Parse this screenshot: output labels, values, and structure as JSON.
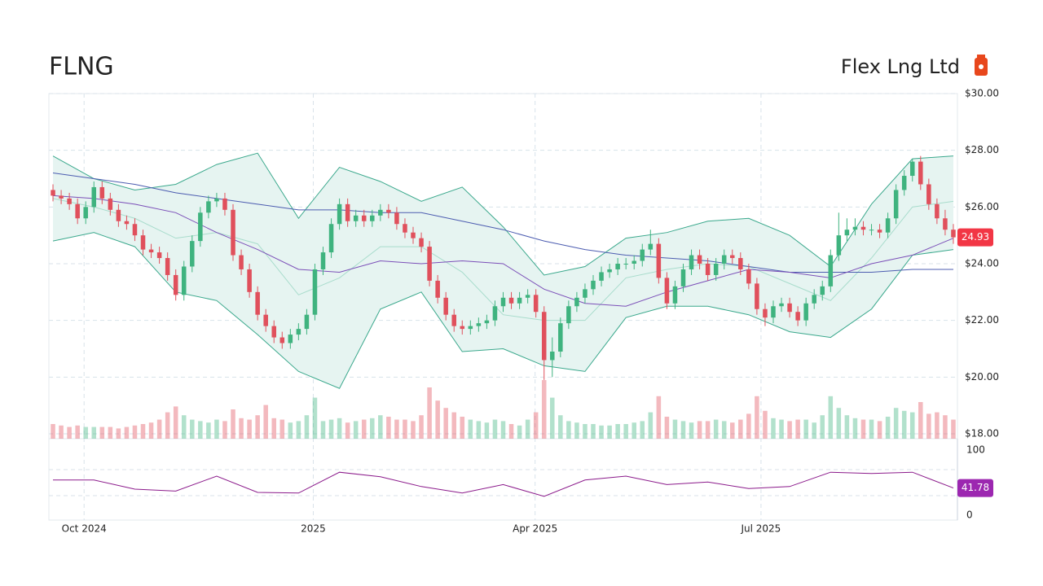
{
  "chart_data": {
    "type": "candlestick",
    "title": "FLNG",
    "subtitle": "Flex Lng Ltd",
    "up_color": "#3fb37f",
    "down_color": "#e0505c",
    "xlim": [
      0,
      111
    ],
    "xticks": [
      {
        "value": 3.8,
        "label": "Oct 2024"
      },
      {
        "value": 31.8,
        "label": "2025"
      },
      {
        "value": 58.9,
        "label": "Apr 2025"
      },
      {
        "value": 86.5,
        "label": "Jul 2025"
      }
    ],
    "ylim": [
      18,
      30
    ],
    "yticks": [
      {
        "value": 18,
        "label": "$18.00"
      },
      {
        "value": 20,
        "label": "$20.00"
      },
      {
        "value": 22,
        "label": "$22.00"
      },
      {
        "value": 24,
        "label": "$24.00"
      },
      {
        "value": 26,
        "label": "$26.00"
      },
      {
        "value": 28,
        "label": "$28.00"
      },
      {
        "value": 30,
        "label": "$30.00"
      }
    ],
    "grid": true,
    "open": [
      26.6,
      26.4,
      26.3,
      26.1,
      25.6,
      26.0,
      26.7,
      26.3,
      25.9,
      25.5,
      25.4,
      25.0,
      24.5,
      24.4,
      24.2,
      23.6,
      22.9,
      23.9,
      24.8,
      25.8,
      26.2,
      26.3,
      25.9,
      24.3,
      23.8,
      23.0,
      22.2,
      21.8,
      21.4,
      21.2,
      21.5,
      21.7,
      22.2,
      23.8,
      24.4,
      25.4,
      26.1,
      25.5,
      25.7,
      25.5,
      25.7,
      25.9,
      25.8,
      25.4,
      25.1,
      24.9,
      24.6,
      23.4,
      22.8,
      22.2,
      21.8,
      21.7,
      21.8,
      21.9,
      22.0,
      22.5,
      22.8,
      22.6,
      22.8,
      22.9,
      22.3,
      20.6,
      20.9,
      21.9,
      22.5,
      22.8,
      23.1,
      23.4,
      23.7,
      23.8,
      24.0,
      24.0,
      24.1,
      24.5,
      24.7,
      23.5,
      22.6,
      23.2,
      23.8,
      24.3,
      24.0,
      23.6,
      24.0,
      24.3,
      24.2,
      23.8,
      23.3,
      22.4,
      22.1,
      22.5,
      22.6,
      22.3,
      22.0,
      22.6,
      22.9,
      23.2,
      24.3,
      25.0,
      25.2,
      25.3,
      25.2,
      25.2,
      25.1,
      25.6,
      26.6,
      27.1,
      27.6,
      26.8,
      26.1,
      25.6,
      25.2
    ],
    "high": [
      26.8,
      26.6,
      26.5,
      26.3,
      26.2,
      26.9,
      26.9,
      26.5,
      26.1,
      25.7,
      25.6,
      25.2,
      24.7,
      24.6,
      24.4,
      23.8,
      24.1,
      25.0,
      26.0,
      26.4,
      26.5,
      26.5,
      26.1,
      24.5,
      24.0,
      23.2,
      22.4,
      22.0,
      21.6,
      21.7,
      21.9,
      22.4,
      24.0,
      24.6,
      25.6,
      26.3,
      26.3,
      25.9,
      25.9,
      25.9,
      26.1,
      26.1,
      26.0,
      25.6,
      25.3,
      25.1,
      24.8,
      23.6,
      23.0,
      22.4,
      22.0,
      22.0,
      22.1,
      22.2,
      22.7,
      23.0,
      23.0,
      23.0,
      23.1,
      23.1,
      22.5,
      21.4,
      22.1,
      22.7,
      23.0,
      23.3,
      23.6,
      23.9,
      24.0,
      24.2,
      24.2,
      24.3,
      24.7,
      25.2,
      24.9,
      23.7,
      23.4,
      24.0,
      24.5,
      24.5,
      24.2,
      24.2,
      24.5,
      24.5,
      24.4,
      24.0,
      23.5,
      22.6,
      22.7,
      22.8,
      22.8,
      22.5,
      22.8,
      23.1,
      23.4,
      24.5,
      25.8,
      25.6,
      25.6,
      25.5,
      25.4,
      25.4,
      25.8,
      26.8,
      27.3,
      27.7,
      27.8,
      27.0,
      26.3,
      25.9,
      25.4
    ],
    "low": [
      26.2,
      26.1,
      25.9,
      25.4,
      25.4,
      25.8,
      26.1,
      25.7,
      25.3,
      25.2,
      24.8,
      24.3,
      24.2,
      24.0,
      23.4,
      22.7,
      22.7,
      23.7,
      24.6,
      25.6,
      26.0,
      25.7,
      24.1,
      23.6,
      22.8,
      22.0,
      21.6,
      21.2,
      21.0,
      21.0,
      21.3,
      21.5,
      22.0,
      23.6,
      24.2,
      25.2,
      25.3,
      25.3,
      25.3,
      25.3,
      25.5,
      25.6,
      25.2,
      24.9,
      24.7,
      24.4,
      23.2,
      22.6,
      22.0,
      21.6,
      21.5,
      21.5,
      21.6,
      21.7,
      21.8,
      22.3,
      22.4,
      22.4,
      22.6,
      22.1,
      19.9,
      20.0,
      20.7,
      21.7,
      22.3,
      22.6,
      22.9,
      23.2,
      23.5,
      23.6,
      23.8,
      23.8,
      23.9,
      24.3,
      23.3,
      22.4,
      22.4,
      23.0,
      23.6,
      23.8,
      23.4,
      23.4,
      23.8,
      24.0,
      23.6,
      23.1,
      22.2,
      21.8,
      21.9,
      22.3,
      22.1,
      21.8,
      21.8,
      22.4,
      22.7,
      23.0,
      24.1,
      24.8,
      25.0,
      25.0,
      25.0,
      24.9,
      24.9,
      25.4,
      26.4,
      26.9,
      26.6,
      25.9,
      25.4,
      25.0,
      24.7
    ],
    "close": [
      26.4,
      26.3,
      26.1,
      25.6,
      26.0,
      26.7,
      26.3,
      25.9,
      25.5,
      25.4,
      25.0,
      24.5,
      24.4,
      24.2,
      23.6,
      22.9,
      23.9,
      24.8,
      25.8,
      26.2,
      26.3,
      25.9,
      24.3,
      23.8,
      23.0,
      22.2,
      21.8,
      21.4,
      21.2,
      21.5,
      21.7,
      22.2,
      23.8,
      24.4,
      25.4,
      26.1,
      25.5,
      25.7,
      25.5,
      25.7,
      25.9,
      25.8,
      25.4,
      25.1,
      24.9,
      24.6,
      23.4,
      22.8,
      22.2,
      21.8,
      21.7,
      21.8,
      21.9,
      22.0,
      22.5,
      22.8,
      22.6,
      22.8,
      22.9,
      22.3,
      20.6,
      20.9,
      21.9,
      22.5,
      22.8,
      23.1,
      23.4,
      23.7,
      23.8,
      24.0,
      24.0,
      24.1,
      24.5,
      24.7,
      23.5,
      22.6,
      23.2,
      23.8,
      24.3,
      24.0,
      23.6,
      24.0,
      24.3,
      24.2,
      23.8,
      23.3,
      22.4,
      22.1,
      22.5,
      22.6,
      22.3,
      22.0,
      22.6,
      22.9,
      23.2,
      24.3,
      25.0,
      25.2,
      25.3,
      25.2,
      25.2,
      25.1,
      25.6,
      26.6,
      27.1,
      27.6,
      26.8,
      26.1,
      25.6,
      25.2,
      24.93
    ],
    "volume": [
      1.0,
      0.9,
      0.8,
      0.9,
      0.8,
      0.8,
      0.8,
      0.8,
      0.7,
      0.8,
      0.9,
      1.0,
      1.1,
      1.3,
      1.8,
      2.2,
      1.6,
      1.3,
      1.2,
      1.1,
      1.3,
      1.2,
      2.0,
      1.4,
      1.3,
      1.6,
      2.3,
      1.4,
      1.3,
      1.1,
      1.2,
      1.6,
      2.8,
      1.2,
      1.3,
      1.4,
      1.1,
      1.2,
      1.3,
      1.4,
      1.6,
      1.5,
      1.3,
      1.3,
      1.2,
      1.6,
      3.5,
      2.6,
      2.1,
      1.8,
      1.5,
      1.3,
      1.2,
      1.1,
      1.3,
      1.2,
      1.0,
      0.9,
      1.3,
      1.8,
      4.0,
      2.8,
      1.6,
      1.2,
      1.1,
      1.0,
      1.0,
      0.9,
      0.9,
      1.0,
      1.0,
      1.1,
      1.2,
      1.8,
      2.9,
      1.5,
      1.3,
      1.2,
      1.1,
      1.2,
      1.2,
      1.3,
      1.2,
      1.1,
      1.3,
      1.7,
      2.9,
      1.9,
      1.4,
      1.3,
      1.2,
      1.3,
      1.3,
      1.1,
      1.6,
      2.9,
      2.1,
      1.6,
      1.4,
      1.3,
      1.3,
      1.2,
      1.5,
      2.1,
      1.9,
      1.8,
      2.5,
      1.7,
      1.8,
      1.6,
      1.3
    ],
    "price_badge_color": "#f23645",
    "indicators": {
      "x": [
        0,
        5,
        10,
        15,
        20,
        25,
        30,
        35,
        40,
        45,
        50,
        55,
        60,
        65,
        70,
        75,
        80,
        85,
        90,
        95,
        100,
        105,
        110
      ],
      "band_fill": "#e6f4f1",
      "bollinger_upper": {
        "color": "#3aa88c",
        "values": [
          27.8,
          27.0,
          26.6,
          26.8,
          27.5,
          27.9,
          25.6,
          27.4,
          26.9,
          26.2,
          26.7,
          25.3,
          23.6,
          23.9,
          24.9,
          25.1,
          25.5,
          25.6,
          25.0,
          23.9,
          26.1,
          27.7,
          27.8
        ]
      },
      "bollinger_lower": {
        "color": "#3aa88c",
        "values": [
          24.8,
          25.1,
          24.6,
          23.0,
          22.7,
          21.5,
          20.2,
          19.6,
          22.4,
          23.0,
          20.9,
          21.0,
          20.4,
          20.2,
          22.1,
          22.5,
          22.5,
          22.2,
          21.6,
          21.4,
          22.4,
          24.3,
          24.5
        ]
      },
      "bollinger_middle": {
        "color": "#a8dccc",
        "values": [
          26.3,
          26.0,
          25.6,
          24.9,
          25.1,
          24.7,
          22.9,
          23.5,
          24.6,
          24.6,
          23.7,
          22.2,
          22.0,
          22.0,
          23.5,
          23.8,
          24.0,
          23.9,
          23.3,
          22.7,
          24.2,
          26.0,
          26.2
        ]
      },
      "sma_50": {
        "color": "#7b4fb8",
        "values": [
          26.4,
          26.3,
          26.1,
          25.8,
          25.1,
          24.5,
          23.8,
          23.7,
          24.1,
          24.0,
          24.1,
          24.0,
          23.1,
          22.6,
          22.5,
          23.0,
          23.4,
          23.8,
          23.7,
          23.5,
          24.0,
          24.3,
          24.9
        ]
      },
      "sma_200": {
        "color": "#4c5cb0",
        "values": [
          27.2,
          27.0,
          26.8,
          26.5,
          26.3,
          26.1,
          25.9,
          25.9,
          25.8,
          25.8,
          25.5,
          25.2,
          24.8,
          24.5,
          24.3,
          24.2,
          24.1,
          23.9,
          23.7,
          23.7,
          23.7,
          23.8,
          23.8
        ]
      }
    },
    "rsi": {
      "ylim": [
        0,
        100
      ],
      "yticks": [
        0,
        100
      ],
      "levels": [
        30,
        70
      ],
      "color": "#8b1a8b",
      "x": [
        0,
        5,
        10,
        15,
        20,
        25,
        30,
        35,
        40,
        45,
        50,
        55,
        60,
        65,
        70,
        75,
        80,
        85,
        90,
        95,
        100,
        105,
        110
      ],
      "values": [
        54,
        54,
        40,
        37,
        60,
        35,
        34,
        66,
        59,
        44,
        34,
        47,
        29,
        54,
        60,
        47,
        51,
        41,
        44,
        66,
        64,
        66,
        41.78
      ],
      "badge_color": "#9c27b0"
    }
  }
}
